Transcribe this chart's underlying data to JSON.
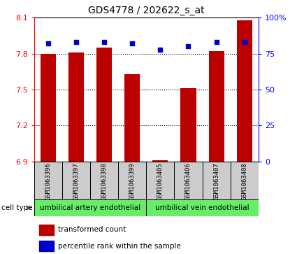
{
  "title": "GDS4778 / 202622_s_at",
  "samples": [
    "GSM1063396",
    "GSM1063397",
    "GSM1063398",
    "GSM1063399",
    "GSM1063405",
    "GSM1063406",
    "GSM1063407",
    "GSM1063408"
  ],
  "red_values": [
    7.8,
    7.81,
    7.85,
    7.63,
    6.91,
    7.51,
    7.82,
    8.08
  ],
  "blue_values": [
    82,
    83,
    83,
    82,
    78,
    80,
    83,
    83
  ],
  "ylim_left": [
    6.9,
    8.1
  ],
  "ylim_right": [
    0,
    100
  ],
  "yticks_left": [
    6.9,
    7.2,
    7.5,
    7.8,
    8.1
  ],
  "yticks_right": [
    0,
    25,
    50,
    75,
    100
  ],
  "ytick_labels_left": [
    "6.9",
    "7.2",
    "7.5",
    "7.8",
    "8.1"
  ],
  "ytick_labels_right": [
    "0",
    "25",
    "50",
    "75",
    "100%"
  ],
  "groups": [
    {
      "label": "umbilical artery endothelial",
      "start": 0,
      "end": 3
    },
    {
      "label": "umbilical vein endothelial",
      "start": 4,
      "end": 7
    }
  ],
  "bar_color": "#bb0000",
  "dot_color": "#0000cc",
  "cell_type_label": "cell type",
  "legend_items": [
    "transformed count",
    "percentile rank within the sample"
  ],
  "bar_width": 0.55,
  "title_fontsize": 10,
  "gridline_yticks": [
    7.8,
    7.5,
    7.2
  ],
  "sample_box_color": "#cccccc",
  "group_box_color": "#66ee66",
  "arrow_color": "#888888"
}
